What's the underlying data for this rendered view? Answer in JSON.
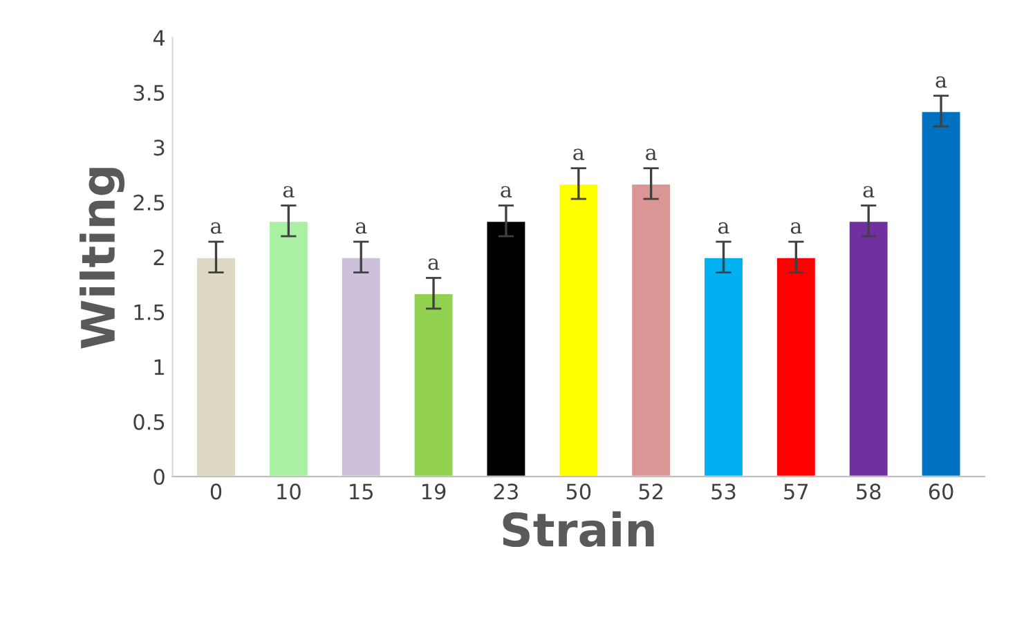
{
  "chart_data": {
    "type": "bar",
    "xlabel": "Strain",
    "ylabel": "Wilting",
    "categories": [
      "0",
      "10",
      "15",
      "19",
      "23",
      "50",
      "52",
      "53",
      "57",
      "58",
      "60"
    ],
    "values": [
      2,
      2.33,
      2,
      1.67,
      2.33,
      2.67,
      2.67,
      2,
      2,
      2.33,
      3.33
    ],
    "colors": [
      "#ddd9c3",
      "#a9f0a3",
      "#ccc0da",
      "#92d050",
      "#000000",
      "#ffff00",
      "#d99694",
      "#00b0f0",
      "#ff0000",
      "#7030a0",
      "#0070c0"
    ],
    "errors": [
      0.14,
      0.14,
      0.14,
      0.14,
      0.14,
      0.14,
      0.14,
      0.14,
      0.14,
      0.14,
      0.14
    ],
    "annotations": [
      {
        "text": "a",
        "x": "0",
        "y": 2.14
      },
      {
        "text": "a",
        "x": "10",
        "y": 2.47
      },
      {
        "text": "a",
        "x": "15",
        "y": 2.14
      },
      {
        "text": "a",
        "x": "19",
        "y": 1.81
      },
      {
        "text": "a",
        "x": "23",
        "y": 2.47
      },
      {
        "text": "a",
        "x": "50",
        "y": 2.81
      },
      {
        "text": "a",
        "x": "52",
        "y": 2.81
      },
      {
        "text": "a",
        "x": "53",
        "y": 2.14
      },
      {
        "text": "a",
        "x": "57",
        "y": 2.14
      },
      {
        "text": "a",
        "x": "58",
        "y": 2.47
      },
      {
        "text": "a",
        "x": "60",
        "y": 3.47
      }
    ],
    "ylim": [
      0,
      4
    ],
    "yticks": [
      0,
      0.5,
      1,
      1.5,
      2,
      2.5,
      3,
      3.5,
      4
    ],
    "grid": false
  }
}
